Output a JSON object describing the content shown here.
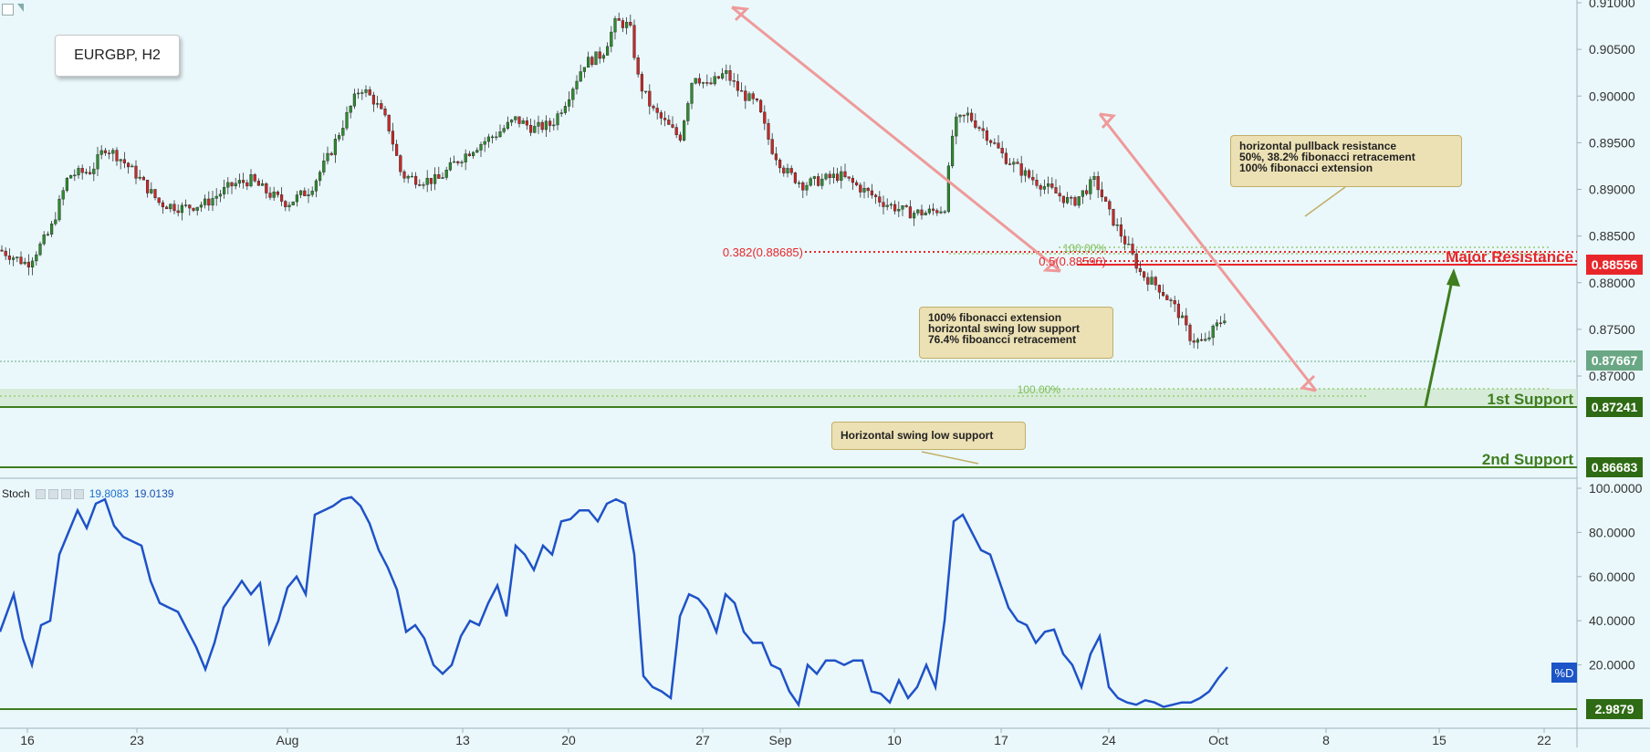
{
  "chart_title": "EURGBP, H2",
  "price_axis": {
    "ticks": [
      "0.91000",
      "0.90500",
      "0.90000",
      "0.89500",
      "0.89000",
      "0.88500",
      "0.88000",
      "0.87500",
      "0.87000"
    ]
  },
  "indicator_axis": {
    "ticks": [
      "100.0000",
      "80.0000",
      "60.0000",
      "40.0000",
      "20.0000"
    ]
  },
  "time_axis": {
    "ticks": [
      "16",
      "23",
      "Aug",
      "13",
      "20",
      "27",
      "Sep",
      "10",
      "17",
      "24",
      "Oct",
      "8",
      "15",
      "22"
    ]
  },
  "price_tags": {
    "major_resistance": "0.88556",
    "current": "0.87667",
    "first_support": "0.87241",
    "second_support": "0.86683",
    "stoch_last": "2.9879"
  },
  "colors": {
    "resistance": "#e8262a",
    "support": "#3f7d1f",
    "current": "#6aa784",
    "stoch": "#1f52c8",
    "arrows": "#ef9a9a",
    "bull": "#2f8a2f",
    "bear": "#c62828"
  },
  "level_labels": {
    "major_resistance": "Major Resistance",
    "first_support": "1st Support",
    "second_support": "2nd Support",
    "fib_382": "0.382(0.88685)",
    "fib_50": "0.5(0.88596)",
    "fib_100_top": "100.00%",
    "fib_100_bottom": "100.00%"
  },
  "notes": {
    "resistance_note": [
      "horizontal pullback resistance",
      "50%, 38.2% fibonacci retracement",
      "100% fibonacci extension"
    ],
    "support_note": [
      "100% fibonacci extension",
      "horizontal swing low support",
      "76.4% fiboancci retracement"
    ],
    "second_note": [
      "Horizontal swing low support"
    ]
  },
  "indicator_legend": {
    "name": "Stoch",
    "value_1": "19.8083",
    "value_2": "19.0139",
    "series_tag": "%D"
  },
  "icons": [
    "collapse-icon",
    "maximize-icon",
    "settings-icon",
    "eye-icon",
    "add-icon",
    "close-icon"
  ],
  "chart_data": [
    {
      "type": "candlestick",
      "title": "EURGBP, H2",
      "xlabel": "",
      "ylabel": "",
      "ylim": [
        0.866,
        0.91
      ],
      "x_ticks": [
        "16",
        "23",
        "Aug",
        "13",
        "20",
        "27",
        "Sep",
        "10",
        "17",
        "24",
        "Oct",
        "8",
        "15",
        "22"
      ],
      "close_path": [
        [
          0,
          0.8835
        ],
        [
          30,
          0.882
        ],
        [
          55,
          0.8855
        ],
        [
          75,
          0.8915
        ],
        [
          100,
          0.892
        ],
        [
          115,
          0.8945
        ],
        [
          130,
          0.8935
        ],
        [
          150,
          0.8915
        ],
        [
          175,
          0.8885
        ],
        [
          200,
          0.888
        ],
        [
          225,
          0.8885
        ],
        [
          255,
          0.8905
        ],
        [
          275,
          0.891
        ],
        [
          295,
          0.8895
        ],
        [
          315,
          0.8885
        ],
        [
          340,
          0.89
        ],
        [
          360,
          0.8935
        ],
        [
          385,
          0.899
        ],
        [
          395,
          0.901
        ],
        [
          410,
          0.8995
        ],
        [
          425,
          0.897
        ],
        [
          440,
          0.8915
        ],
        [
          460,
          0.891
        ],
        [
          480,
          0.891
        ],
        [
          500,
          0.893
        ],
        [
          520,
          0.8945
        ],
        [
          545,
          0.896
        ],
        [
          565,
          0.8975
        ],
        [
          585,
          0.8965
        ],
        [
          605,
          0.897
        ],
        [
          620,
          0.8995
        ],
        [
          640,
          0.9035
        ],
        [
          660,
          0.9045
        ],
        [
          675,
          0.908
        ],
        [
          690,
          0.9075
        ],
        [
          700,
          0.9015
        ],
        [
          715,
          0.8985
        ],
        [
          735,
          0.8965
        ],
        [
          745,
          0.8955
        ],
        [
          760,
          0.9025
        ],
        [
          775,
          0.901
        ],
        [
          795,
          0.9025
        ],
        [
          810,
          0.9005
        ],
        [
          830,
          0.899
        ],
        [
          845,
          0.8945
        ],
        [
          860,
          0.892
        ],
        [
          880,
          0.8905
        ],
        [
          900,
          0.891
        ],
        [
          920,
          0.8915
        ],
        [
          945,
          0.89
        ],
        [
          970,
          0.8885
        ],
        [
          995,
          0.8875
        ],
        [
          1015,
          0.8875
        ],
        [
          1035,
          0.888
        ],
        [
          1045,
          0.897
        ],
        [
          1060,
          0.898
        ],
        [
          1080,
          0.896
        ],
        [
          1100,
          0.8935
        ],
        [
          1125,
          0.8915
        ],
        [
          1150,
          0.89
        ],
        [
          1175,
          0.8885
        ],
        [
          1200,
          0.891
        ],
        [
          1215,
          0.8875
        ],
        [
          1235,
          0.884
        ],
        [
          1250,
          0.881
        ],
        [
          1270,
          0.8795
        ],
        [
          1290,
          0.877
        ],
        [
          1305,
          0.874
        ],
        [
          1320,
          0.8735
        ],
        [
          1330,
          0.875
        ],
        [
          1345,
          0.8767
        ]
      ]
    },
    {
      "type": "line",
      "title": "Stoch",
      "xlabel": "",
      "ylabel": "",
      "ylim": [
        0,
        100
      ],
      "series": [
        {
          "name": "%D",
          "points": [
            [
              0,
              35
            ],
            [
              15,
              52
            ],
            [
              25,
              32
            ],
            [
              35,
              20
            ],
            [
              45,
              38
            ],
            [
              55,
              40
            ],
            [
              65,
              70
            ],
            [
              75,
              80
            ],
            [
              85,
              90
            ],
            [
              95,
              82
            ],
            [
              105,
              93
            ],
            [
              115,
              95
            ],
            [
              125,
              83
            ],
            [
              135,
              78
            ],
            [
              145,
              76
            ],
            [
              155,
              74
            ],
            [
              165,
              58
            ],
            [
              175,
              48
            ],
            [
              185,
              46
            ],
            [
              195,
              44
            ],
            [
              205,
              36
            ],
            [
              215,
              28
            ],
            [
              225,
              18
            ],
            [
              235,
              30
            ],
            [
              245,
              46
            ],
            [
              255,
              52
            ],
            [
              265,
              58
            ],
            [
              275,
              52
            ],
            [
              285,
              57
            ],
            [
              295,
              30
            ],
            [
              305,
              40
            ],
            [
              315,
              55
            ],
            [
              325,
              60
            ],
            [
              335,
              52
            ],
            [
              345,
              88
            ],
            [
              355,
              90
            ],
            [
              365,
              92
            ],
            [
              375,
              95
            ],
            [
              385,
              96
            ],
            [
              395,
              92
            ],
            [
              405,
              84
            ],
            [
              415,
              72
            ],
            [
              425,
              64
            ],
            [
              435,
              54
            ],
            [
              445,
              35
            ],
            [
              455,
              38
            ],
            [
              465,
              32
            ],
            [
              475,
              20
            ],
            [
              485,
              16
            ],
            [
              495,
              20
            ],
            [
              505,
              33
            ],
            [
              515,
              40
            ],
            [
              525,
              38
            ],
            [
              535,
              48
            ],
            [
              545,
              56
            ],
            [
              555,
              42
            ],
            [
              565,
              74
            ],
            [
              575,
              70
            ],
            [
              585,
              63
            ],
            [
              595,
              74
            ],
            [
              605,
              70
            ],
            [
              615,
              85
            ],
            [
              625,
              86
            ],
            [
              635,
              90
            ],
            [
              645,
              90
            ],
            [
              655,
              85
            ],
            [
              665,
              93
            ],
            [
              675,
              95
            ],
            [
              685,
              93
            ],
            [
              695,
              70
            ],
            [
              705,
              15
            ],
            [
              715,
              10
            ],
            [
              725,
              8
            ],
            [
              735,
              5
            ],
            [
              745,
              42
            ],
            [
              755,
              52
            ],
            [
              765,
              50
            ],
            [
              775,
              45
            ],
            [
              785,
              35
            ],
            [
              795,
              52
            ],
            [
              805,
              48
            ],
            [
              815,
              35
            ],
            [
              825,
              30
            ],
            [
              835,
              30
            ],
            [
              845,
              20
            ],
            [
              855,
              18
            ],
            [
              865,
              8
            ],
            [
              875,
              2
            ],
            [
              885,
              20
            ],
            [
              895,
              16
            ],
            [
              905,
              22
            ],
            [
              915,
              22
            ],
            [
              925,
              20
            ],
            [
              935,
              22
            ],
            [
              945,
              22
            ],
            [
              955,
              8
            ],
            [
              965,
              7
            ],
            [
              975,
              3
            ],
            [
              985,
              13
            ],
            [
              995,
              5
            ],
            [
              1005,
              10
            ],
            [
              1015,
              20
            ],
            [
              1025,
              10
            ],
            [
              1035,
              40
            ],
            [
              1045,
              85
            ],
            [
              1055,
              88
            ],
            [
              1065,
              80
            ],
            [
              1075,
              72
            ],
            [
              1085,
              70
            ],
            [
              1095,
              58
            ],
            [
              1105,
              46
            ],
            [
              1115,
              40
            ],
            [
              1125,
              38
            ],
            [
              1135,
              30
            ],
            [
              1145,
              35
            ],
            [
              1155,
              36
            ],
            [
              1165,
              25
            ],
            [
              1175,
              20
            ],
            [
              1185,
              10
            ],
            [
              1195,
              25
            ],
            [
              1205,
              33
            ],
            [
              1215,
              10
            ],
            [
              1225,
              5
            ],
            [
              1235,
              3
            ],
            [
              1245,
              2
            ],
            [
              1255,
              4
            ],
            [
              1265,
              3
            ],
            [
              1275,
              1
            ],
            [
              1285,
              2
            ],
            [
              1295,
              3
            ],
            [
              1305,
              3
            ],
            [
              1315,
              5
            ],
            [
              1325,
              8
            ],
            [
              1335,
              14
            ],
            [
              1345,
              19
            ]
          ]
        }
      ]
    }
  ]
}
